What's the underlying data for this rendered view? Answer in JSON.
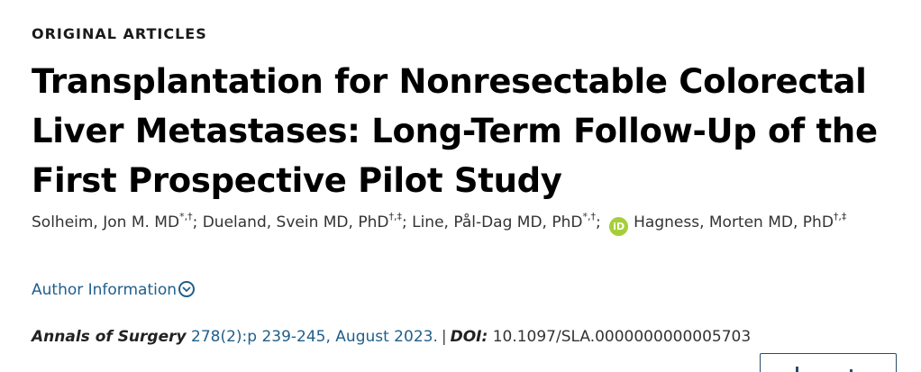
{
  "article": {
    "section": "ORIGINAL ARTICLES",
    "title": "Transplantation for Nonresectable Colorectal Liver Metastases: Long-Term Follow-Up of the First Prospective Pilot Study",
    "authors": [
      {
        "name": "Solheim, Jon M. MD",
        "affiliations": "*,†",
        "sep": "; "
      },
      {
        "name": "Dueland, Svein MD, PhD",
        "affiliations": "†,‡",
        "sep": "; "
      },
      {
        "name": "Line, Pål-Dag MD, PhD",
        "affiliations": "*,†",
        "sep": "; "
      },
      {
        "name": "Hagness, Morten MD, PhD",
        "affiliations": "†,‡",
        "sep": ""
      }
    ],
    "orcid_label": "iD",
    "author_info_label": "Author Information",
    "citation": {
      "journal": "Annals of Surgery",
      "issue": "278(2):p 239-245, August 2023.",
      "separator": "|",
      "doi_label": "DOI:",
      "doi": "10.1097/SLA.0000000000005703"
    }
  },
  "colors": {
    "link": "#1f5f8b",
    "orcid": "#a6ce39"
  }
}
